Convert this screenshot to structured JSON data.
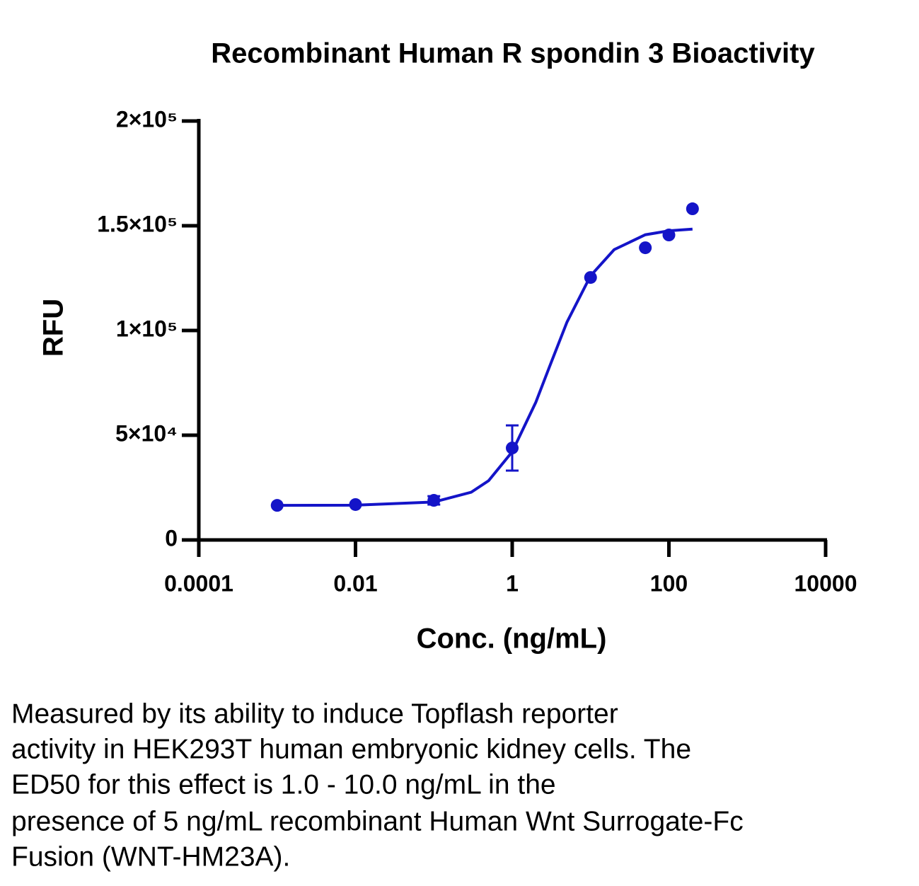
{
  "chart_data": {
    "type": "scatter",
    "title": "Recombinant Human R spondin 3 Bioactivity",
    "xlabel": "Conc. (ng/mL)",
    "ylabel": "RFU",
    "xscale": "log",
    "xlim": [
      0.0001,
      10000
    ],
    "xticks": [
      0.0001,
      0.01,
      1,
      100,
      10000
    ],
    "ylim": [
      0,
      200000
    ],
    "yticks": [
      0,
      {
        "value": 50000,
        "label": "5×10⁴"
      },
      {
        "value": 100000,
        "label": "1×10⁵"
      },
      {
        "value": 150000,
        "label": "1.5×10⁵"
      },
      {
        "value": 200000,
        "label": "2×10⁵"
      }
    ],
    "series": [
      {
        "style": "points",
        "color": "#1414c8",
        "x": [
          0.001,
          0.01,
          0.1,
          1,
          10,
          50,
          100,
          200
        ],
        "values": [
          16500,
          16900,
          18900,
          43900,
          125300,
          139500,
          145600,
          158100
        ],
        "errors": [
          null,
          null,
          2000,
          10800,
          null,
          null,
          null,
          null
        ]
      },
      {
        "style": "line",
        "color": "#1414c8",
        "x": [
          0.001,
          0.01,
          0.1,
          0.3,
          0.5,
          1,
          2,
          3,
          5,
          10,
          20,
          50,
          100,
          200
        ],
        "values": [
          16500,
          16600,
          18100,
          22800,
          28300,
          42100,
          65700,
          82800,
          104000,
          126100,
          138600,
          145700,
          147600,
          148400
        ]
      }
    ]
  },
  "caption": [
    "Measured by its ability to induce Topflash reporter",
    "activity in HEK293T human embryonic kidney cells. The",
    "ED50 for this effect is 1.0 - 10.0 ng/mL in the",
    "presence of 5 ng/mL recombinant Human Wnt Surrogate-Fc",
    "Fusion (WNT-HM23A)."
  ]
}
